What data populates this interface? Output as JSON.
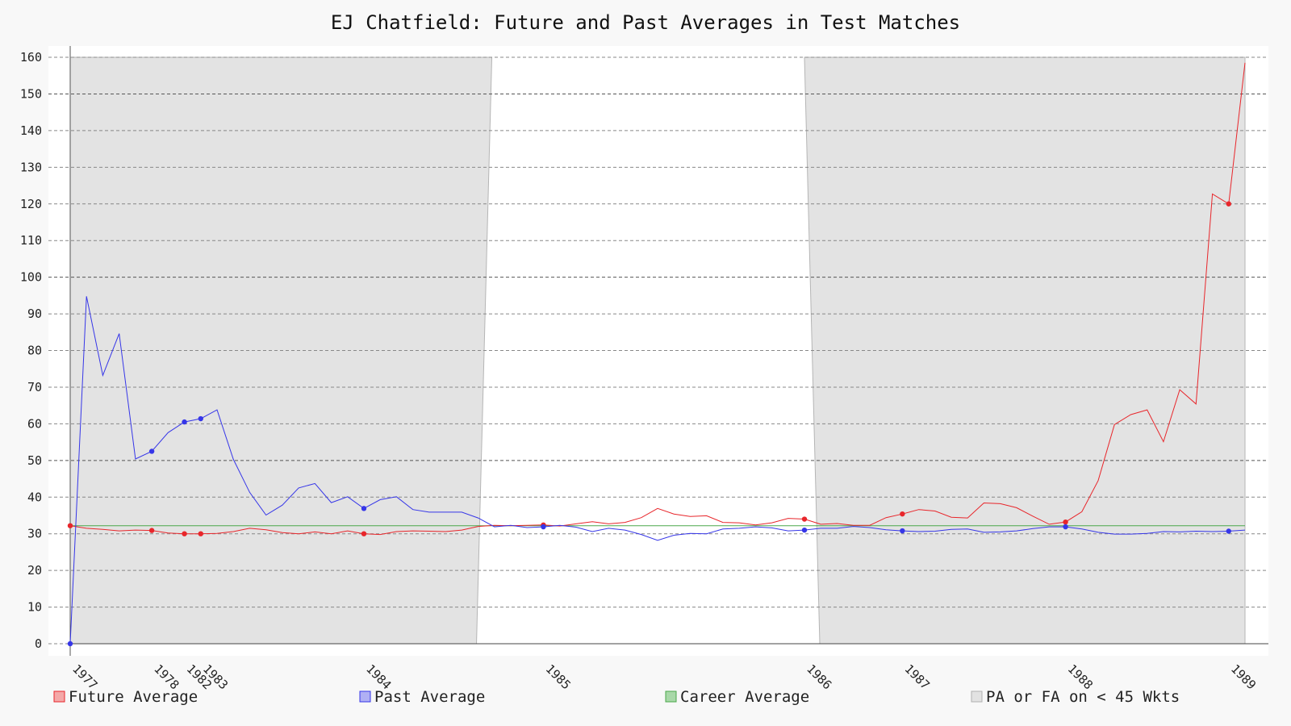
{
  "chart_data": {
    "type": "line",
    "title": "EJ Chatfield: Future and Past Averages in Test Matches",
    "xlabel": "",
    "ylabel": "",
    "ylim": [
      0,
      160
    ],
    "yticks": [
      0,
      10,
      20,
      30,
      40,
      50,
      60,
      70,
      80,
      90,
      100,
      110,
      120,
      130,
      140,
      150,
      160
    ],
    "grid": true,
    "legend_position": "bottom",
    "x_tick_labels": [
      {
        "label": "1977",
        "index": 0
      },
      {
        "label": "1978",
        "index": 5
      },
      {
        "label": "1982",
        "index": 7
      },
      {
        "label": "1983",
        "index": 8
      },
      {
        "label": "1984",
        "index": 18
      },
      {
        "label": "1985",
        "index": 29
      },
      {
        "label": "1986",
        "index": 45
      },
      {
        "label": "1987",
        "index": 51
      },
      {
        "label": "1988",
        "index": 61
      },
      {
        "label": "1989",
        "index": 71
      }
    ],
    "x_count": 73,
    "career_average": 32.2,
    "shaded_regions": [
      {
        "start": 0,
        "end": 24.9
      },
      {
        "start": 45,
        "end": 72
      }
    ],
    "series": [
      {
        "name": "Future Average",
        "color": "#e8262b",
        "values": [
          32.2,
          31.5,
          31.2,
          30.8,
          31.0,
          30.9,
          30.2,
          30.0,
          30.0,
          30.1,
          30.6,
          31.5,
          31.1,
          30.3,
          30.0,
          30.5,
          30.0,
          30.8,
          30.0,
          29.8,
          30.6,
          30.8,
          30.7,
          30.6,
          31.0,
          32.0,
          32.3,
          32.2,
          32.3,
          32.4,
          32.1,
          32.7,
          33.3,
          32.7,
          33.1,
          34.4,
          36.9,
          35.4,
          34.7,
          34.9,
          33.1,
          33.0,
          32.4,
          33.0,
          34.2,
          34.0,
          32.6,
          32.8,
          32.3,
          32.3,
          34.4,
          35.4,
          36.6,
          36.2,
          34.5,
          34.3,
          38.4,
          38.2,
          37.1,
          34.8,
          32.6,
          33.2,
          36.0,
          44.5,
          59.8,
          62.5,
          63.8,
          55.1,
          69.3,
          65.4,
          122.7,
          120.0,
          158.5
        ],
        "markers": [
          0,
          5,
          7,
          8,
          18,
          29,
          45,
          51,
          61,
          71
        ]
      },
      {
        "name": "Past Average",
        "color": "#3636e8",
        "values": [
          0.0,
          94.8,
          73.2,
          84.6,
          50.4,
          52.5,
          57.6,
          60.5,
          61.4,
          63.8,
          50.3,
          41.3,
          35.1,
          37.8,
          42.5,
          43.7,
          38.5,
          40.1,
          36.9,
          39.3,
          40.1,
          36.6,
          35.9,
          35.9,
          35.9,
          34.3,
          31.9,
          32.3,
          31.7,
          31.9,
          32.3,
          31.8,
          30.6,
          31.5,
          31.0,
          29.8,
          28.2,
          29.6,
          30.1,
          30.0,
          31.3,
          31.5,
          31.9,
          31.6,
          30.8,
          31.0,
          31.5,
          31.5,
          32.0,
          31.7,
          31.1,
          30.8,
          30.6,
          30.7,
          31.2,
          31.3,
          30.4,
          30.5,
          30.8,
          31.4,
          31.9,
          31.9,
          31.3,
          30.4,
          29.9,
          29.9,
          30.1,
          30.6,
          30.5,
          30.7,
          30.6,
          30.7,
          31.0
        ],
        "markers": [
          0,
          5,
          7,
          8,
          18,
          29,
          45,
          51,
          61,
          71
        ]
      }
    ],
    "legend": [
      {
        "label": "Future Average",
        "color": "#f4a8a8",
        "border": "#e8262b"
      },
      {
        "label": "Past Average",
        "color": "#b0b0f4",
        "border": "#3636e8"
      },
      {
        "label": "Career Average",
        "color": "#a8d8a8",
        "border": "#4aa84a"
      },
      {
        "label": "PA or FA on < 45 Wkts",
        "color": "#e2e2e2",
        "border": "#b0b0b0"
      }
    ],
    "colors": {
      "background": "#f8f8f8",
      "plot_background": "#ffffff",
      "shade": "#e3e3e3",
      "career": "#4aa84a"
    }
  }
}
